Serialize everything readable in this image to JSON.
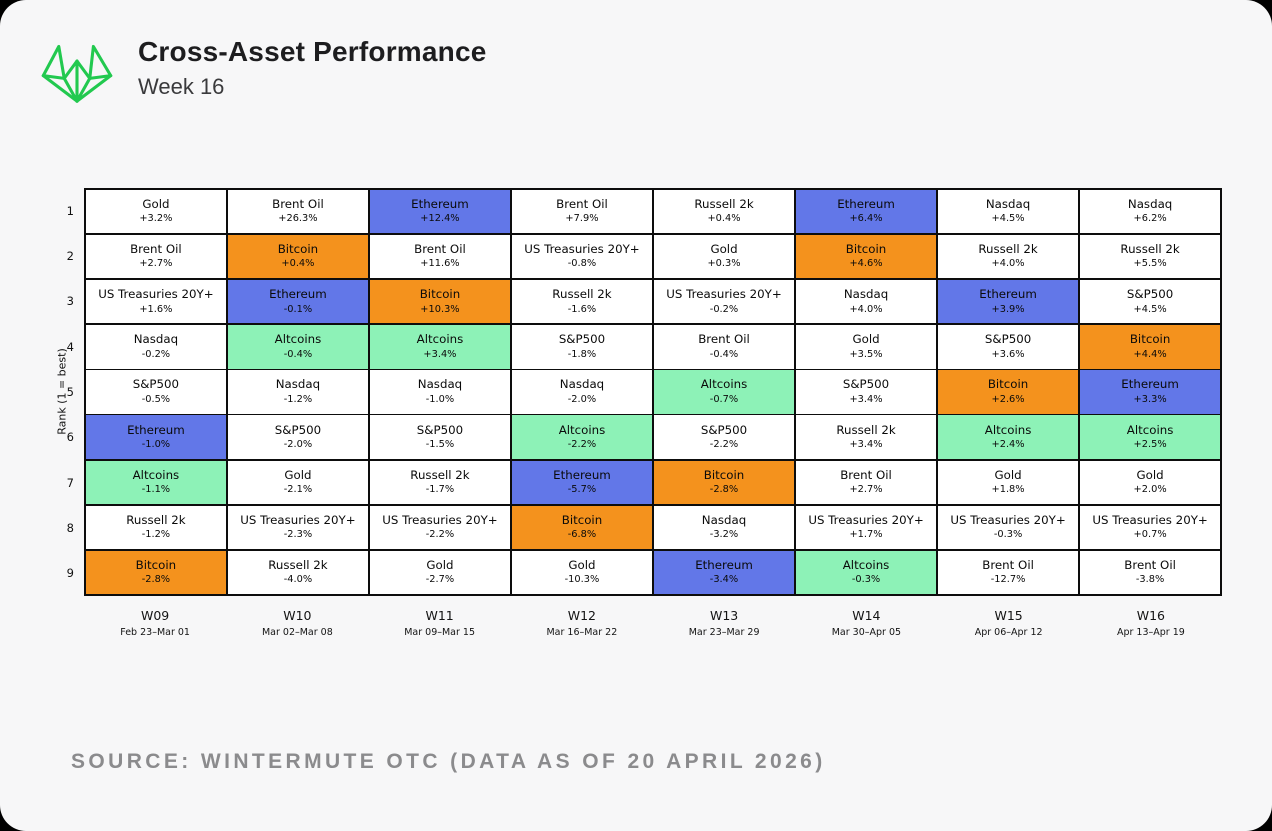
{
  "header": {
    "title": "Cross-Asset Performance",
    "subtitle": "Week 16"
  },
  "footer": {
    "source": "SOURCE: WINTERMUTE OTC (DATA AS OF 20 APRIL 2026)"
  },
  "colors": {
    "ethereum": "#6277e8",
    "bitcoin": "#f4921d",
    "altcoins": "#8df2b7",
    "default": "#ffffff",
    "logo_green": "#22c94f",
    "grid_line": "#0d0d0d"
  },
  "chart_data": {
    "type": "table",
    "title": "Cross-Asset Performance — Week 16",
    "ylabel": "Rank (1 = best)",
    "legend_position": "none",
    "grid": true,
    "ranks": [
      1,
      2,
      3,
      4,
      5,
      6,
      7,
      8,
      9
    ],
    "highlight_assets": {
      "Ethereum": "ethereum",
      "Bitcoin": "bitcoin",
      "Altcoins": "altcoins"
    },
    "weeks": [
      {
        "label": "W09",
        "dates": "Feb 23–Mar 01",
        "cells": [
          {
            "asset": "Gold",
            "change": "+3.2%"
          },
          {
            "asset": "Brent Oil",
            "change": "+2.7%"
          },
          {
            "asset": "US Treasuries 20Y+",
            "change": "+1.6%"
          },
          {
            "asset": "Nasdaq",
            "change": "-0.2%"
          },
          {
            "asset": "S&P500",
            "change": "-0.5%"
          },
          {
            "asset": "Ethereum",
            "change": "-1.0%"
          },
          {
            "asset": "Altcoins",
            "change": "-1.1%"
          },
          {
            "asset": "Russell 2k",
            "change": "-1.2%"
          },
          {
            "asset": "Bitcoin",
            "change": "-2.8%"
          }
        ]
      },
      {
        "label": "W10",
        "dates": "Mar 02–Mar 08",
        "cells": [
          {
            "asset": "Brent Oil",
            "change": "+26.3%"
          },
          {
            "asset": "Bitcoin",
            "change": "+0.4%"
          },
          {
            "asset": "Ethereum",
            "change": "-0.1%"
          },
          {
            "asset": "Altcoins",
            "change": "-0.4%"
          },
          {
            "asset": "Nasdaq",
            "change": "-1.2%"
          },
          {
            "asset": "S&P500",
            "change": "-2.0%"
          },
          {
            "asset": "Gold",
            "change": "-2.1%"
          },
          {
            "asset": "US Treasuries 20Y+",
            "change": "-2.3%"
          },
          {
            "asset": "Russell 2k",
            "change": "-4.0%"
          }
        ]
      },
      {
        "label": "W11",
        "dates": "Mar 09–Mar 15",
        "cells": [
          {
            "asset": "Ethereum",
            "change": "+12.4%"
          },
          {
            "asset": "Brent Oil",
            "change": "+11.6%"
          },
          {
            "asset": "Bitcoin",
            "change": "+10.3%"
          },
          {
            "asset": "Altcoins",
            "change": "+3.4%"
          },
          {
            "asset": "Nasdaq",
            "change": "-1.0%"
          },
          {
            "asset": "S&P500",
            "change": "-1.5%"
          },
          {
            "asset": "Russell 2k",
            "change": "-1.7%"
          },
          {
            "asset": "US Treasuries 20Y+",
            "change": "-2.2%"
          },
          {
            "asset": "Gold",
            "change": "-2.7%"
          }
        ]
      },
      {
        "label": "W12",
        "dates": "Mar 16–Mar 22",
        "cells": [
          {
            "asset": "Brent Oil",
            "change": "+7.9%"
          },
          {
            "asset": "US Treasuries 20Y+",
            "change": "-0.8%"
          },
          {
            "asset": "Russell 2k",
            "change": "-1.6%"
          },
          {
            "asset": "S&P500",
            "change": "-1.8%"
          },
          {
            "asset": "Nasdaq",
            "change": "-2.0%"
          },
          {
            "asset": "Altcoins",
            "change": "-2.2%"
          },
          {
            "asset": "Ethereum",
            "change": "-5.7%"
          },
          {
            "asset": "Bitcoin",
            "change": "-6.8%"
          },
          {
            "asset": "Gold",
            "change": "-10.3%"
          }
        ]
      },
      {
        "label": "W13",
        "dates": "Mar 23–Mar 29",
        "cells": [
          {
            "asset": "Russell 2k",
            "change": "+0.4%"
          },
          {
            "asset": "Gold",
            "change": "+0.3%"
          },
          {
            "asset": "US Treasuries 20Y+",
            "change": "-0.2%"
          },
          {
            "asset": "Brent Oil",
            "change": "-0.4%"
          },
          {
            "asset": "Altcoins",
            "change": "-0.7%"
          },
          {
            "asset": "S&P500",
            "change": "-2.2%"
          },
          {
            "asset": "Bitcoin",
            "change": "-2.8%"
          },
          {
            "asset": "Nasdaq",
            "change": "-3.2%"
          },
          {
            "asset": "Ethereum",
            "change": "-3.4%"
          }
        ]
      },
      {
        "label": "W14",
        "dates": "Mar 30–Apr 05",
        "cells": [
          {
            "asset": "Ethereum",
            "change": "+6.4%"
          },
          {
            "asset": "Bitcoin",
            "change": "+4.6%"
          },
          {
            "asset": "Nasdaq",
            "change": "+4.0%"
          },
          {
            "asset": "Gold",
            "change": "+3.5%"
          },
          {
            "asset": "S&P500",
            "change": "+3.4%"
          },
          {
            "asset": "Russell 2k",
            "change": "+3.4%"
          },
          {
            "asset": "Brent Oil",
            "change": "+2.7%"
          },
          {
            "asset": "US Treasuries 20Y+",
            "change": "+1.7%"
          },
          {
            "asset": "Altcoins",
            "change": "-0.3%"
          }
        ]
      },
      {
        "label": "W15",
        "dates": "Apr 06–Apr 12",
        "cells": [
          {
            "asset": "Nasdaq",
            "change": "+4.5%"
          },
          {
            "asset": "Russell 2k",
            "change": "+4.0%"
          },
          {
            "asset": "Ethereum",
            "change": "+3.9%"
          },
          {
            "asset": "S&P500",
            "change": "+3.6%"
          },
          {
            "asset": "Bitcoin",
            "change": "+2.6%"
          },
          {
            "asset": "Altcoins",
            "change": "+2.4%"
          },
          {
            "asset": "Gold",
            "change": "+1.8%"
          },
          {
            "asset": "US Treasuries 20Y+",
            "change": "-0.3%"
          },
          {
            "asset": "Brent Oil",
            "change": "-12.7%"
          }
        ]
      },
      {
        "label": "W16",
        "dates": "Apr 13–Apr 19",
        "cells": [
          {
            "asset": "Nasdaq",
            "change": "+6.2%"
          },
          {
            "asset": "Russell 2k",
            "change": "+5.5%"
          },
          {
            "asset": "S&P500",
            "change": "+4.5%"
          },
          {
            "asset": "Bitcoin",
            "change": "+4.4%"
          },
          {
            "asset": "Ethereum",
            "change": "+3.3%"
          },
          {
            "asset": "Altcoins",
            "change": "+2.5%"
          },
          {
            "asset": "Gold",
            "change": "+2.0%"
          },
          {
            "asset": "US Treasuries 20Y+",
            "change": "+0.7%"
          },
          {
            "asset": "Brent Oil",
            "change": "-3.8%"
          }
        ]
      }
    ]
  }
}
